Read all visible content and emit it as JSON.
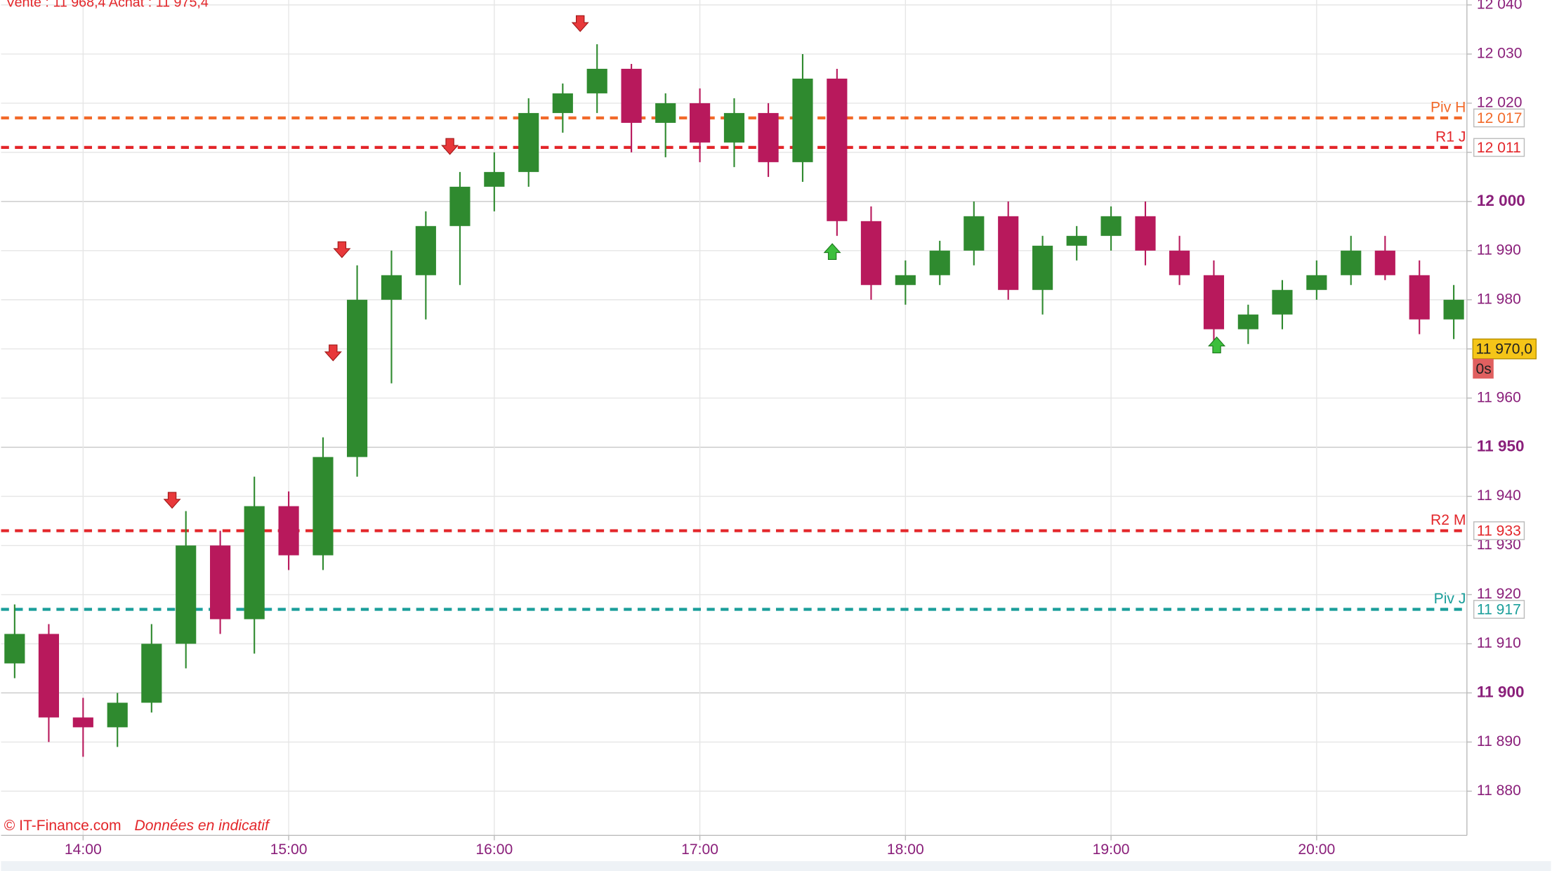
{
  "chart_data": {
    "type": "candlestick",
    "header": "Vente : 11 968,4 Achat : 11 975,4",
    "copyright": "© IT-Finance.com",
    "disclaimer": "Données en indicatif",
    "xlim": [
      13.601,
      20.731
    ],
    "xticks": [
      {
        "value": 14,
        "label": "14:00"
      },
      {
        "value": 15,
        "label": "15:00"
      },
      {
        "value": 16,
        "label": "16:00"
      },
      {
        "value": 17,
        "label": "17:00"
      },
      {
        "value": 18,
        "label": "18:00"
      },
      {
        "value": 19,
        "label": "19:00"
      },
      {
        "value": 20,
        "label": "20:00"
      }
    ],
    "ylim": [
      11871,
      12041
    ],
    "yticks": [
      {
        "value": 11880,
        "label": "11 880"
      },
      {
        "value": 11890,
        "label": "11 890"
      },
      {
        "value": 11900,
        "label": "11 900"
      },
      {
        "value": 11910,
        "label": "11 910"
      },
      {
        "value": 11920,
        "label": "11 920"
      },
      {
        "value": 11930,
        "label": "11 930"
      },
      {
        "value": 11940,
        "label": "11 940"
      },
      {
        "value": 11950,
        "label": "11 950"
      },
      {
        "value": 11960,
        "label": "11 960"
      },
      {
        "value": 11970,
        "label": "11 970"
      },
      {
        "value": 11980,
        "label": "11 980"
      },
      {
        "value": 11990,
        "label": "11 990"
      },
      {
        "value": 12000,
        "label": "12 000"
      },
      {
        "value": 12010,
        "label": "12 010"
      },
      {
        "value": 12020,
        "label": "12 020"
      },
      {
        "value": 12030,
        "label": "12 030"
      },
      {
        "value": 12040,
        "label": "12 040"
      }
    ],
    "grid": true,
    "up_color": "#2f8a2f",
    "down_color": "#b8195c",
    "candles": {
      "x": [
        13.667,
        13.833,
        14,
        14.167,
        14.333,
        14.5,
        14.667,
        14.833,
        15,
        15.167,
        15.333,
        15.5,
        15.667,
        15.833,
        16,
        16.167,
        16.333,
        16.5,
        16.667,
        16.833,
        17,
        17.167,
        17.333,
        17.5,
        17.667,
        17.833,
        18,
        18.167,
        18.333,
        18.5,
        18.667,
        18.833,
        19,
        19.167,
        19.333,
        19.5,
        19.667,
        19.833,
        20,
        20.167,
        20.333,
        20.5,
        20.667
      ],
      "open": [
        11906,
        11912,
        11895,
        11893,
        11898,
        11910,
        11930,
        11915,
        11938,
        11928,
        11948,
        11980,
        11985,
        11995,
        12003,
        12006,
        12018,
        12022,
        12027,
        12016,
        12020,
        12012,
        12018,
        12008,
        12025,
        11996,
        11983,
        11985,
        11990,
        11997,
        11982,
        11991,
        11993,
        11997,
        11990,
        11985,
        11974,
        11977,
        11982,
        11985,
        11990,
        11985,
        11976
      ],
      "high": [
        11918,
        11914,
        11899,
        11900,
        11914,
        11937,
        11933,
        11944,
        11941,
        11952,
        11987,
        11990,
        11998,
        12006,
        12010,
        12021,
        12024,
        12032,
        12028,
        12022,
        12023,
        12021,
        12020,
        12030,
        12027,
        11999,
        11988,
        11992,
        12000,
        12000,
        11993,
        11995,
        11999,
        12000,
        11993,
        11988,
        11979,
        11984,
        11988,
        11993,
        11993,
        11988,
        11983
      ],
      "low": [
        11903,
        11890,
        11887,
        11889,
        11896,
        11905,
        11912,
        11908,
        11925,
        11925,
        11944,
        11963,
        11976,
        11983,
        11998,
        12003,
        12014,
        12018,
        12010,
        12009,
        12008,
        12007,
        12005,
        12004,
        11993,
        11980,
        11979,
        11983,
        11987,
        11980,
        11977,
        11988,
        11990,
        11987,
        11983,
        11971,
        11971,
        11974,
        11980,
        11983,
        11984,
        11973,
        11972
      ],
      "close": [
        11912,
        11895,
        11893,
        11898,
        11910,
        11930,
        11915,
        11938,
        11928,
        11948,
        11980,
        11985,
        11995,
        12003,
        12006,
        12018,
        12022,
        12027,
        12016,
        12020,
        12012,
        12018,
        12008,
        12025,
        11996,
        11983,
        11985,
        11990,
        11997,
        11982,
        11991,
        11993,
        11997,
        11990,
        11985,
        11974,
        11977,
        11982,
        11985,
        11990,
        11985,
        11976,
        11980
      ]
    },
    "levels": [
      {
        "name": "Piv H",
        "value": 12017,
        "value_label": "12 017",
        "color": "#f26a2a"
      },
      {
        "name": "R1 J",
        "value": 12011,
        "value_label": "12 011",
        "color": "#e3262a"
      },
      {
        "name": "R2 M",
        "value": 11933,
        "value_label": "11 933",
        "color": "#e3262a"
      },
      {
        "name": "Piv J",
        "value": 11917,
        "value_label": "11 917",
        "color": "#1a9e9a"
      }
    ],
    "signals": [
      {
        "x": 14.433,
        "value": 11939,
        "direction": "down"
      },
      {
        "x": 15.216,
        "value": 11969,
        "direction": "down"
      },
      {
        "x": 15.259,
        "value": 11990,
        "direction": "down"
      },
      {
        "x": 15.784,
        "value": 12011,
        "direction": "down"
      },
      {
        "x": 16.418,
        "value": 12036,
        "direction": "down"
      },
      {
        "x": 17.644,
        "value": 11990,
        "direction": "up"
      },
      {
        "x": 19.514,
        "value": 11971,
        "direction": "up"
      }
    ],
    "last_price": {
      "value": 11970,
      "label": "11 970,0"
    },
    "countdown": "0s"
  }
}
